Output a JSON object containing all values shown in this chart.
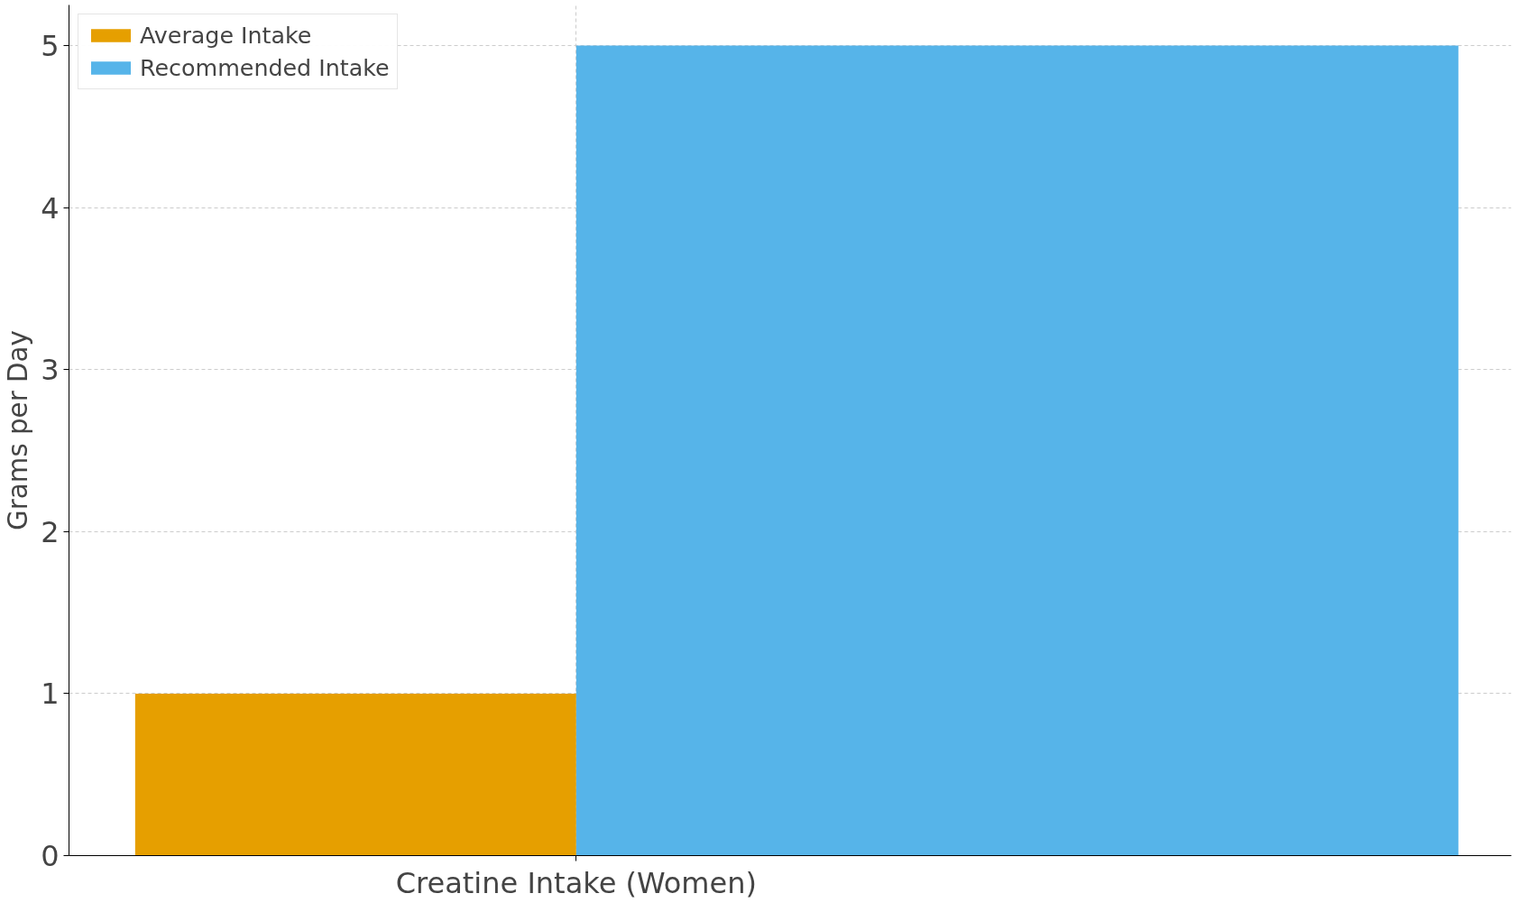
{
  "chart_data": {
    "type": "bar",
    "categories": [
      "Creatine Intake (Women)"
    ],
    "ylabel": "Grams per Day",
    "series": [
      {
        "name": "Average Intake",
        "color": "#e69f00",
        "values": [
          1
        ]
      },
      {
        "name": "Recommended Intake",
        "color": "#56b4e9",
        "values": [
          5
        ]
      }
    ],
    "ylim": [
      0,
      5.25
    ],
    "yticks": [
      0,
      1,
      2,
      3,
      4,
      5
    ],
    "grid": true,
    "legend": "top left"
  }
}
